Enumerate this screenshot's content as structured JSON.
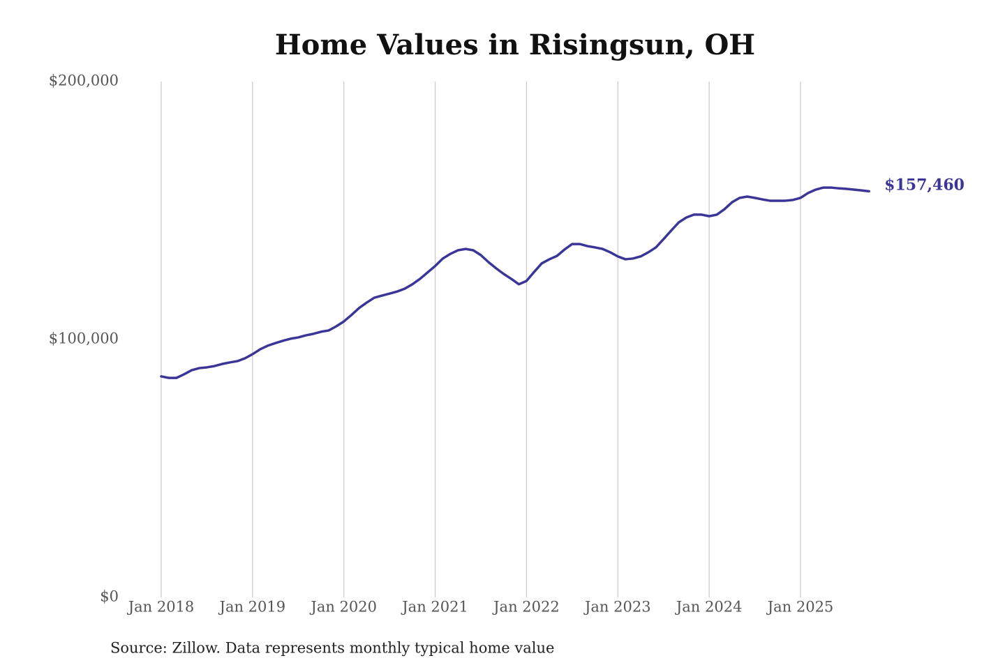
{
  "chart_data": {
    "type": "line",
    "title": "Home Values in Risingsun, OH",
    "source": "Source: Zillow. Data represents monthly typical home value",
    "x": [
      "2018-01",
      "2018-02",
      "2018-03",
      "2018-04",
      "2018-05",
      "2018-06",
      "2018-07",
      "2018-08",
      "2018-09",
      "2018-10",
      "2018-11",
      "2018-12",
      "2019-01",
      "2019-02",
      "2019-03",
      "2019-04",
      "2019-05",
      "2019-06",
      "2019-07",
      "2019-08",
      "2019-09",
      "2019-10",
      "2019-11",
      "2019-12",
      "2020-01",
      "2020-02",
      "2020-03",
      "2020-04",
      "2020-05",
      "2020-06",
      "2020-07",
      "2020-08",
      "2020-09",
      "2020-10",
      "2020-11",
      "2020-12",
      "2021-01",
      "2021-02",
      "2021-03",
      "2021-04",
      "2021-05",
      "2021-06",
      "2021-07",
      "2021-08",
      "2021-09",
      "2021-10",
      "2021-11",
      "2021-12",
      "2022-01",
      "2022-02",
      "2022-03",
      "2022-04",
      "2022-05",
      "2022-06",
      "2022-07",
      "2022-08",
      "2022-09",
      "2022-10",
      "2022-11",
      "2022-12",
      "2023-01",
      "2023-02",
      "2023-03",
      "2023-04",
      "2023-05",
      "2023-06",
      "2023-07",
      "2023-08",
      "2023-09",
      "2023-10",
      "2023-11",
      "2023-12",
      "2024-01",
      "2024-02",
      "2024-03",
      "2024-04",
      "2024-05",
      "2024-06",
      "2024-07",
      "2024-08",
      "2024-09",
      "2024-10",
      "2024-11",
      "2024-12",
      "2025-01",
      "2025-02",
      "2025-03",
      "2025-04",
      "2025-05",
      "2025-06",
      "2025-07",
      "2025-08",
      "2025-09",
      "2025-10"
    ],
    "series": [
      {
        "name": "Home value",
        "color": "#3b3598",
        "values": [
          85700,
          85100,
          85100,
          86500,
          88100,
          88900,
          89200,
          89700,
          90500,
          91100,
          91600,
          92700,
          94300,
          96200,
          97600,
          98600,
          99500,
          100300,
          100800,
          101600,
          102200,
          103000,
          103500,
          105100,
          107000,
          109500,
          112200,
          114300,
          116200,
          117000,
          117800,
          118600,
          119700,
          121400,
          123500,
          126000,
          128500,
          131400,
          133200,
          134600,
          135100,
          134600,
          132700,
          130000,
          127600,
          125400,
          123500,
          121400,
          122700,
          126200,
          129500,
          131100,
          132400,
          134900,
          137000,
          137000,
          136200,
          135700,
          135100,
          133800,
          132200,
          131100,
          131400,
          132200,
          133800,
          135700,
          138900,
          142200,
          145400,
          147300,
          148400,
          148400,
          147800,
          148400,
          150500,
          153200,
          154900,
          155400,
          154900,
          154300,
          153800,
          153800,
          153800,
          154100,
          154900,
          156800,
          158100,
          158900,
          158900,
          158600,
          158400,
          158100,
          157800,
          157460
        ],
        "value_labels": [
          null,
          null,
          null,
          null,
          null,
          null,
          null,
          null,
          null,
          null,
          null,
          null,
          null,
          null,
          null,
          null,
          null,
          null,
          null,
          null,
          null,
          null,
          null,
          null,
          null,
          null,
          null,
          null,
          null,
          null,
          null,
          null,
          null,
          null,
          null,
          null,
          null,
          null,
          null,
          null,
          null,
          null,
          null,
          null,
          null,
          null,
          null,
          null,
          null,
          null,
          null,
          null,
          null,
          null,
          null,
          null,
          null,
          null,
          null,
          null,
          null,
          null,
          null,
          null,
          null,
          null,
          null,
          null,
          null,
          null,
          null,
          null,
          null,
          null,
          null,
          null,
          null,
          null,
          null,
          null,
          null,
          null,
          null,
          null,
          null,
          null,
          null,
          null,
          null,
          null,
          null,
          null,
          null,
          "$157,460"
        ]
      }
    ],
    "xticks": [
      {
        "value": "2018-01",
        "label": "Jan 2018"
      },
      {
        "value": "2019-01",
        "label": "Jan 2019"
      },
      {
        "value": "2020-01",
        "label": "Jan 2020"
      },
      {
        "value": "2021-01",
        "label": "Jan 2021"
      },
      {
        "value": "2022-01",
        "label": "Jan 2022"
      },
      {
        "value": "2023-01",
        "label": "Jan 2023"
      },
      {
        "value": "2024-01",
        "label": "Jan 2024"
      },
      {
        "value": "2025-01",
        "label": "Jan 2025"
      }
    ],
    "ylim": [
      0,
      200000
    ],
    "yticks": [
      {
        "value": 0,
        "label": "$0"
      },
      {
        "value": 100000,
        "label": "$100,000"
      },
      {
        "value": 200000,
        "label": "$200,000"
      }
    ],
    "grid": "x"
  }
}
